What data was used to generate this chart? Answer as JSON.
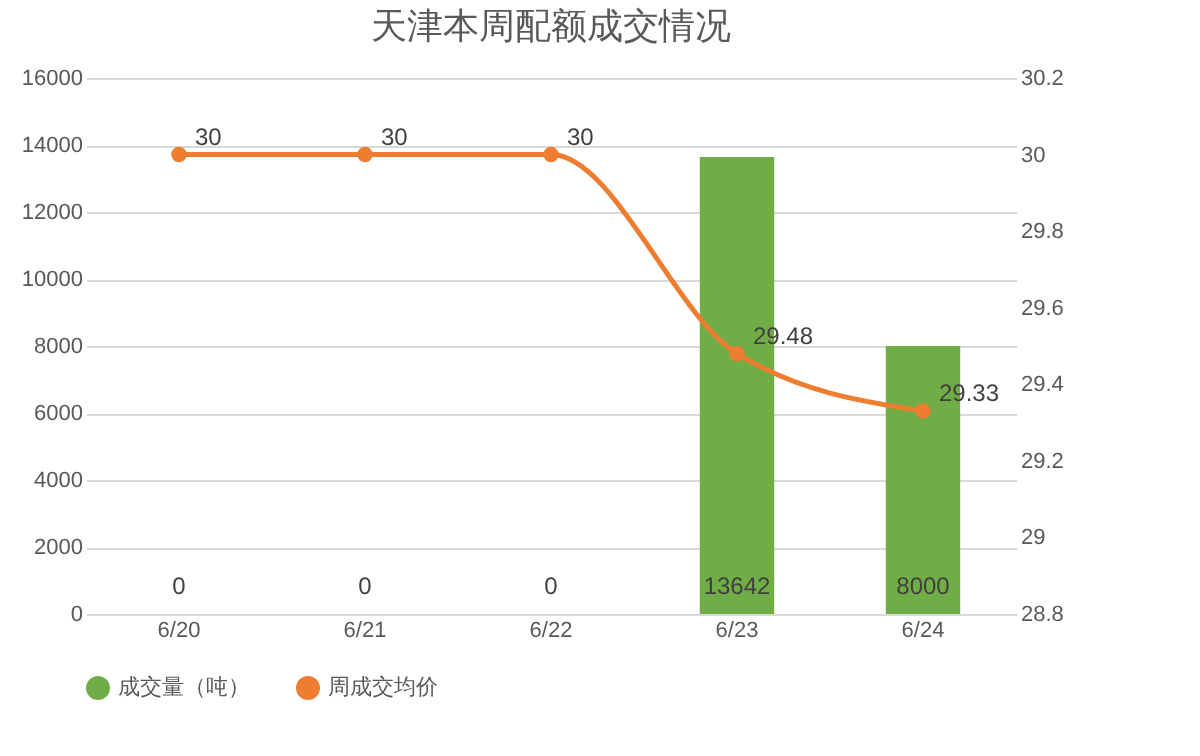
{
  "chart_data": {
    "type": "bar",
    "title": "天津本周配额成交情况",
    "categories": [
      "6/20",
      "6/21",
      "6/22",
      "6/23",
      "6/24"
    ],
    "series": [
      {
        "name": "成交量（吨）",
        "color": "#70ad47",
        "values": [
          0,
          0,
          0,
          13642,
          8000
        ]
      },
      {
        "name": "周成交均价",
        "type": "line",
        "axis": "y2",
        "color": "#ed7d31",
        "values": [
          30,
          30,
          30,
          29.48,
          29.33
        ]
      }
    ],
    "ylim": [
      0,
      16000
    ],
    "yticks": [
      0,
      2000,
      4000,
      6000,
      8000,
      10000,
      12000,
      14000,
      16000
    ],
    "y2lim": [
      28.8,
      30.2
    ],
    "y2ticks": [
      28.8,
      29,
      29.2,
      29.4,
      29.6,
      29.8,
      30,
      30.2
    ],
    "grid": "y",
    "legend": "bottom",
    "marker": "circle",
    "data_labels": true
  }
}
